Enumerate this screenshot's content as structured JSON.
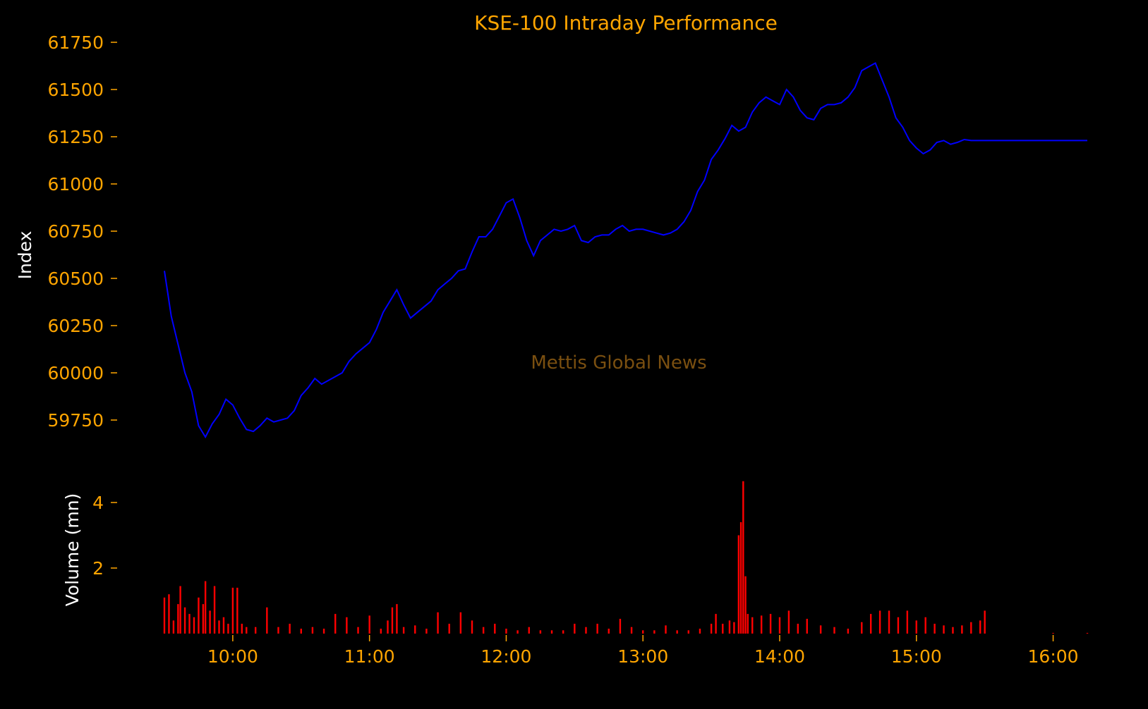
{
  "chart_data": {
    "type": "line",
    "title": "KSE-100 Intraday Performance",
    "watermark": "Mettis Global News",
    "background": "#000000",
    "colors": {
      "index_line": "#0000FF",
      "volume_bars": "#FF0000",
      "tick_labels": "#FFA500",
      "axis_titles": "#FFFFFF"
    },
    "grid": false,
    "x": {
      "type": "time",
      "ticks": [
        "10:00",
        "11:00",
        "12:00",
        "13:00",
        "14:00",
        "15:00",
        "16:00"
      ],
      "range": [
        "09:30",
        "16:15"
      ]
    },
    "index_panel": {
      "ylabel": "Index",
      "ylim": [
        59600,
        61800
      ],
      "yticks": [
        59750,
        60000,
        60250,
        60500,
        60750,
        61000,
        61250,
        61500,
        61750
      ],
      "series": [
        {
          "points": [
            [
              "09:30",
              60540
            ],
            [
              "09:33",
              60300
            ],
            [
              "09:36",
              60150
            ],
            [
              "09:39",
              60000
            ],
            [
              "09:42",
              59900
            ],
            [
              "09:45",
              59720
            ],
            [
              "09:48",
              59660
            ],
            [
              "09:51",
              59730
            ],
            [
              "09:54",
              59780
            ],
            [
              "09:57",
              59860
            ],
            [
              "10:00",
              59830
            ],
            [
              "10:03",
              59760
            ],
            [
              "10:06",
              59700
            ],
            [
              "10:09",
              59690
            ],
            [
              "10:12",
              59720
            ],
            [
              "10:15",
              59760
            ],
            [
              "10:18",
              59740
            ],
            [
              "10:21",
              59750
            ],
            [
              "10:24",
              59760
            ],
            [
              "10:27",
              59800
            ],
            [
              "10:30",
              59880
            ],
            [
              "10:33",
              59920
            ],
            [
              "10:36",
              59970
            ],
            [
              "10:39",
              59940
            ],
            [
              "10:42",
              59960
            ],
            [
              "10:45",
              59980
            ],
            [
              "10:48",
              60000
            ],
            [
              "10:51",
              60060
            ],
            [
              "10:54",
              60100
            ],
            [
              "10:57",
              60130
            ],
            [
              "11:00",
              60160
            ],
            [
              "11:03",
              60230
            ],
            [
              "11:06",
              60320
            ],
            [
              "11:09",
              60380
            ],
            [
              "11:12",
              60440
            ],
            [
              "11:15",
              60360
            ],
            [
              "11:18",
              60290
            ],
            [
              "11:21",
              60320
            ],
            [
              "11:24",
              60350
            ],
            [
              "11:27",
              60380
            ],
            [
              "11:30",
              60440
            ],
            [
              "11:33",
              60470
            ],
            [
              "11:36",
              60500
            ],
            [
              "11:39",
              60540
            ],
            [
              "11:42",
              60550
            ],
            [
              "11:45",
              60640
            ],
            [
              "11:48",
              60720
            ],
            [
              "11:51",
              60720
            ],
            [
              "11:54",
              60760
            ],
            [
              "11:57",
              60830
            ],
            [
              "12:00",
              60900
            ],
            [
              "12:03",
              60920
            ],
            [
              "12:06",
              60820
            ],
            [
              "12:09",
              60700
            ],
            [
              "12:12",
              60620
            ],
            [
              "12:15",
              60700
            ],
            [
              "12:18",
              60730
            ],
            [
              "12:21",
              60760
            ],
            [
              "12:24",
              60750
            ],
            [
              "12:27",
              60760
            ],
            [
              "12:30",
              60780
            ],
            [
              "12:33",
              60700
            ],
            [
              "12:36",
              60690
            ],
            [
              "12:39",
              60720
            ],
            [
              "12:42",
              60730
            ],
            [
              "12:45",
              60730
            ],
            [
              "12:48",
              60760
            ],
            [
              "12:51",
              60780
            ],
            [
              "12:54",
              60750
            ],
            [
              "12:57",
              60760
            ],
            [
              "13:00",
              60760
            ],
            [
              "13:03",
              60750
            ],
            [
              "13:06",
              60740
            ],
            [
              "13:09",
              60730
            ],
            [
              "13:12",
              60740
            ],
            [
              "13:15",
              60760
            ],
            [
              "13:18",
              60800
            ],
            [
              "13:21",
              60860
            ],
            [
              "13:24",
              60960
            ],
            [
              "13:27",
              61020
            ],
            [
              "13:30",
              61130
            ],
            [
              "13:33",
              61180
            ],
            [
              "13:36",
              61240
            ],
            [
              "13:39",
              61310
            ],
            [
              "13:42",
              61280
            ],
            [
              "13:45",
              61300
            ],
            [
              "13:48",
              61380
            ],
            [
              "13:51",
              61430
            ],
            [
              "13:54",
              61460
            ],
            [
              "13:57",
              61440
            ],
            [
              "14:00",
              61420
            ],
            [
              "14:03",
              61500
            ],
            [
              "14:06",
              61460
            ],
            [
              "14:09",
              61390
            ],
            [
              "14:12",
              61350
            ],
            [
              "14:15",
              61340
            ],
            [
              "14:18",
              61400
            ],
            [
              "14:21",
              61420
            ],
            [
              "14:24",
              61420
            ],
            [
              "14:27",
              61430
            ],
            [
              "14:30",
              61460
            ],
            [
              "14:33",
              61510
            ],
            [
              "14:36",
              61600
            ],
            [
              "14:39",
              61620
            ],
            [
              "14:42",
              61640
            ],
            [
              "14:45",
              61550
            ],
            [
              "14:48",
              61460
            ],
            [
              "14:51",
              61350
            ],
            [
              "14:54",
              61300
            ],
            [
              "14:57",
              61230
            ],
            [
              "15:00",
              61190
            ],
            [
              "15:03",
              61160
            ],
            [
              "15:06",
              61180
            ],
            [
              "15:09",
              61220
            ],
            [
              "15:12",
              61230
            ],
            [
              "15:15",
              61210
            ],
            [
              "15:18",
              61220
            ],
            [
              "15:21",
              61235
            ],
            [
              "15:24",
              61230
            ],
            [
              "15:30",
              61230
            ],
            [
              "16:15",
              61230
            ]
          ]
        }
      ]
    },
    "volume_panel": {
      "ylabel": "Volume (mn)",
      "ylim": [
        0,
        5
      ],
      "yticks": [
        2,
        4
      ],
      "series": [
        {
          "points": [
            [
              "09:30",
              1.1
            ],
            [
              "09:32",
              1.2
            ],
            [
              "09:34",
              0.4
            ],
            [
              "09:36",
              0.9
            ],
            [
              "09:37",
              1.45
            ],
            [
              "09:39",
              0.8
            ],
            [
              "09:41",
              0.6
            ],
            [
              "09:43",
              0.5
            ],
            [
              "09:45",
              1.1
            ],
            [
              "09:47",
              0.9
            ],
            [
              "09:48",
              1.6
            ],
            [
              "09:50",
              0.7
            ],
            [
              "09:52",
              1.45
            ],
            [
              "09:54",
              0.4
            ],
            [
              "09:56",
              0.5
            ],
            [
              "09:58",
              0.3
            ],
            [
              "10:00",
              1.4
            ],
            [
              "10:02",
              1.4
            ],
            [
              "10:04",
              0.3
            ],
            [
              "10:06",
              0.2
            ],
            [
              "10:10",
              0.2
            ],
            [
              "10:15",
              0.8
            ],
            [
              "10:20",
              0.2
            ],
            [
              "10:25",
              0.3
            ],
            [
              "10:30",
              0.15
            ],
            [
              "10:35",
              0.2
            ],
            [
              "10:40",
              0.15
            ],
            [
              "10:45",
              0.6
            ],
            [
              "10:50",
              0.5
            ],
            [
              "10:55",
              0.2
            ],
            [
              "11:00",
              0.55
            ],
            [
              "11:05",
              0.15
            ],
            [
              "11:08",
              0.4
            ],
            [
              "11:10",
              0.8
            ],
            [
              "11:12",
              0.9
            ],
            [
              "11:15",
              0.2
            ],
            [
              "11:20",
              0.25
            ],
            [
              "11:25",
              0.15
            ],
            [
              "11:30",
              0.65
            ],
            [
              "11:35",
              0.3
            ],
            [
              "11:40",
              0.65
            ],
            [
              "11:45",
              0.4
            ],
            [
              "11:50",
              0.2
            ],
            [
              "11:55",
              0.3
            ],
            [
              "12:00",
              0.15
            ],
            [
              "12:05",
              0.1
            ],
            [
              "12:10",
              0.2
            ],
            [
              "12:15",
              0.1
            ],
            [
              "12:20",
              0.1
            ],
            [
              "12:25",
              0.1
            ],
            [
              "12:30",
              0.3
            ],
            [
              "12:35",
              0.2
            ],
            [
              "12:40",
              0.3
            ],
            [
              "12:45",
              0.15
            ],
            [
              "12:50",
              0.45
            ],
            [
              "12:55",
              0.2
            ],
            [
              "13:00",
              0.1
            ],
            [
              "13:05",
              0.1
            ],
            [
              "13:10",
              0.25
            ],
            [
              "13:15",
              0.1
            ],
            [
              "13:20",
              0.1
            ],
            [
              "13:25",
              0.15
            ],
            [
              "13:30",
              0.3
            ],
            [
              "13:32",
              0.6
            ],
            [
              "13:35",
              0.3
            ],
            [
              "13:38",
              0.4
            ],
            [
              "13:40",
              0.35
            ],
            [
              "13:42",
              3.0
            ],
            [
              "13:43",
              3.4
            ],
            [
              "13:44",
              4.65
            ],
            [
              "13:45",
              1.75
            ],
            [
              "13:46",
              0.6
            ],
            [
              "13:48",
              0.5
            ],
            [
              "13:52",
              0.55
            ],
            [
              "13:56",
              0.6
            ],
            [
              "14:00",
              0.5
            ],
            [
              "14:04",
              0.7
            ],
            [
              "14:08",
              0.3
            ],
            [
              "14:12",
              0.45
            ],
            [
              "14:18",
              0.25
            ],
            [
              "14:24",
              0.2
            ],
            [
              "14:30",
              0.15
            ],
            [
              "14:36",
              0.35
            ],
            [
              "14:40",
              0.6
            ],
            [
              "14:44",
              0.7
            ],
            [
              "14:48",
              0.7
            ],
            [
              "14:52",
              0.5
            ],
            [
              "14:56",
              0.7
            ],
            [
              "15:00",
              0.4
            ],
            [
              "15:04",
              0.5
            ],
            [
              "15:08",
              0.3
            ],
            [
              "15:12",
              0.25
            ],
            [
              "15:16",
              0.2
            ],
            [
              "15:20",
              0.25
            ],
            [
              "15:24",
              0.35
            ],
            [
              "15:28",
              0.4
            ],
            [
              "15:30",
              0.7
            ],
            [
              "16:00",
              0.02
            ],
            [
              "16:15",
              0.02
            ]
          ]
        }
      ]
    }
  }
}
